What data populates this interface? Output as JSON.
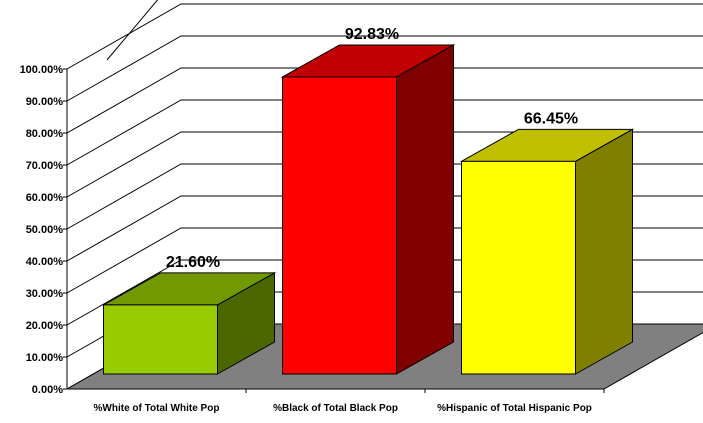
{
  "chart_data": {
    "type": "bar",
    "title": "",
    "xlabel": "",
    "ylabel": "",
    "categories": [
      "%White of Total White Pop",
      "%Black of Total Black Pop",
      "%Hispanic of Total Hispanic Pop"
    ],
    "values": [
      21.6,
      92.83,
      66.45
    ],
    "data_labels": [
      "21.60%",
      "92.83%",
      "66.45%"
    ],
    "ylim": [
      0,
      100
    ],
    "yticks": [
      "0.00%",
      "10.00%",
      "20.00%",
      "30.00%",
      "40.00%",
      "50.00%",
      "60.00%",
      "70.00%",
      "80.00%",
      "90.00%",
      "100.00%"
    ],
    "grid": true,
    "legend": "none",
    "style": "3d-column",
    "colors": {
      "bars": [
        {
          "front": "#99CC00",
          "side": "#4C6600",
          "top": "#739900"
        },
        {
          "front": "#FF0000",
          "side": "#800000",
          "top": "#C00000"
        },
        {
          "front": "#FFFF00",
          "side": "#808000",
          "top": "#C0C000"
        }
      ],
      "floor": "#808080",
      "gridline": "#000000"
    }
  }
}
